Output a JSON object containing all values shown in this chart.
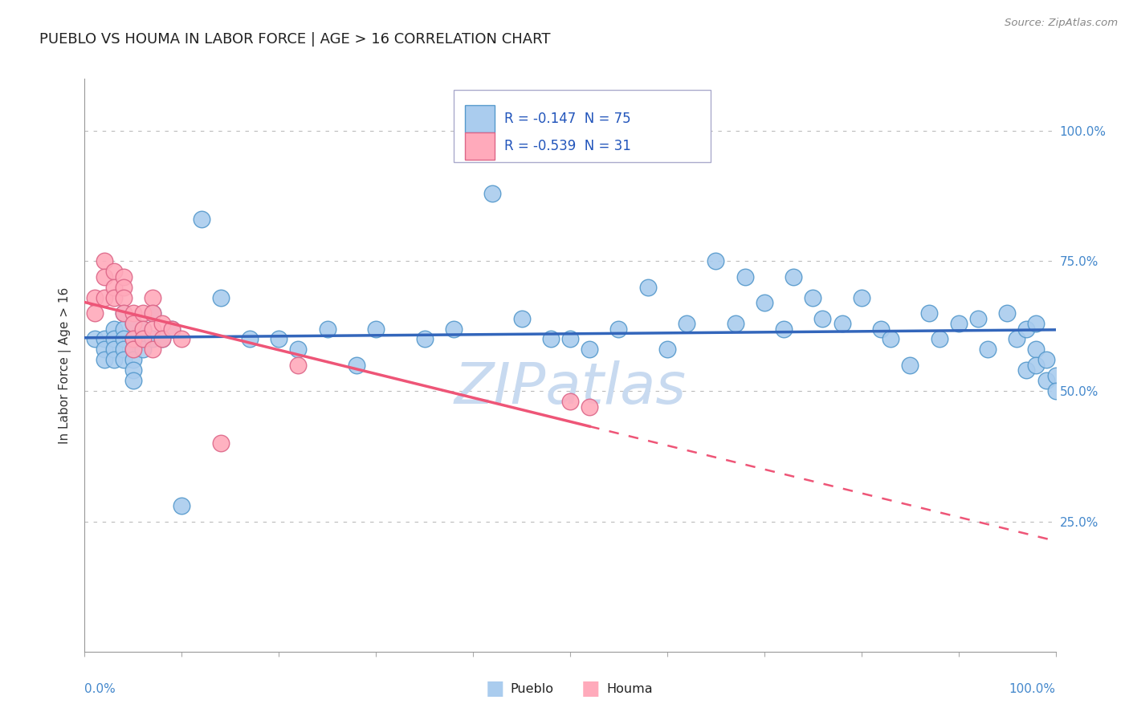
{
  "title": "PUEBLO VS HOUMA IN LABOR FORCE | AGE > 16 CORRELATION CHART",
  "source_text": "Source: ZipAtlas.com",
  "ylabel": "In Labor Force | Age > 16",
  "xlim": [
    0.0,
    1.0
  ],
  "ylim": [
    0.0,
    1.1
  ],
  "pueblo_color": "#aaccee",
  "pueblo_edge": "#5599cc",
  "houma_color": "#ffaabb",
  "houma_edge": "#dd6688",
  "pueblo_line_color": "#3366bb",
  "houma_line_color": "#ee5577",
  "watermark_color": "#c8daf0",
  "legend_R_pueblo": "R = -0.147",
  "legend_N_pueblo": "N = 75",
  "legend_R_houma": "R = -0.539",
  "legend_N_houma": "N = 31",
  "legend_text_color": "#2255bb",
  "pueblo_x": [
    0.01,
    0.02,
    0.02,
    0.02,
    0.03,
    0.03,
    0.03,
    0.03,
    0.04,
    0.04,
    0.04,
    0.04,
    0.04,
    0.05,
    0.05,
    0.05,
    0.05,
    0.05,
    0.05,
    0.06,
    0.06,
    0.06,
    0.07,
    0.07,
    0.08,
    0.09,
    0.1,
    0.12,
    0.14,
    0.17,
    0.2,
    0.22,
    0.25,
    0.28,
    0.3,
    0.35,
    0.38,
    0.42,
    0.45,
    0.48,
    0.5,
    0.52,
    0.55,
    0.58,
    0.6,
    0.62,
    0.65,
    0.67,
    0.68,
    0.7,
    0.72,
    0.73,
    0.75,
    0.76,
    0.78,
    0.8,
    0.82,
    0.83,
    0.85,
    0.87,
    0.88,
    0.9,
    0.92,
    0.93,
    0.95,
    0.96,
    0.97,
    0.97,
    0.98,
    0.98,
    0.98,
    0.99,
    0.99,
    1.0,
    1.0
  ],
  "pueblo_y": [
    0.6,
    0.6,
    0.58,
    0.56,
    0.62,
    0.6,
    0.58,
    0.56,
    0.65,
    0.62,
    0.6,
    0.58,
    0.56,
    0.63,
    0.6,
    0.58,
    0.56,
    0.54,
    0.52,
    0.62,
    0.6,
    0.58,
    0.65,
    0.6,
    0.6,
    0.62,
    0.28,
    0.83,
    0.68,
    0.6,
    0.6,
    0.58,
    0.62,
    0.55,
    0.62,
    0.6,
    0.62,
    0.88,
    0.64,
    0.6,
    0.6,
    0.58,
    0.62,
    0.7,
    0.58,
    0.63,
    0.75,
    0.63,
    0.72,
    0.67,
    0.62,
    0.72,
    0.68,
    0.64,
    0.63,
    0.68,
    0.62,
    0.6,
    0.55,
    0.65,
    0.6,
    0.63,
    0.64,
    0.58,
    0.65,
    0.6,
    0.62,
    0.54,
    0.58,
    0.55,
    0.63,
    0.56,
    0.52,
    0.53,
    0.5
  ],
  "houma_x": [
    0.01,
    0.01,
    0.02,
    0.02,
    0.02,
    0.03,
    0.03,
    0.03,
    0.04,
    0.04,
    0.04,
    0.04,
    0.05,
    0.05,
    0.05,
    0.05,
    0.06,
    0.06,
    0.06,
    0.07,
    0.07,
    0.07,
    0.07,
    0.08,
    0.08,
    0.09,
    0.1,
    0.14,
    0.22,
    0.5,
    0.52
  ],
  "houma_y": [
    0.68,
    0.65,
    0.75,
    0.72,
    0.68,
    0.73,
    0.7,
    0.68,
    0.72,
    0.7,
    0.68,
    0.65,
    0.65,
    0.63,
    0.6,
    0.58,
    0.65,
    0.62,
    0.6,
    0.68,
    0.65,
    0.62,
    0.58,
    0.63,
    0.6,
    0.62,
    0.6,
    0.4,
    0.55,
    0.48,
    0.47
  ],
  "background_color": "#ffffff",
  "grid_color": "#bbbbbb"
}
